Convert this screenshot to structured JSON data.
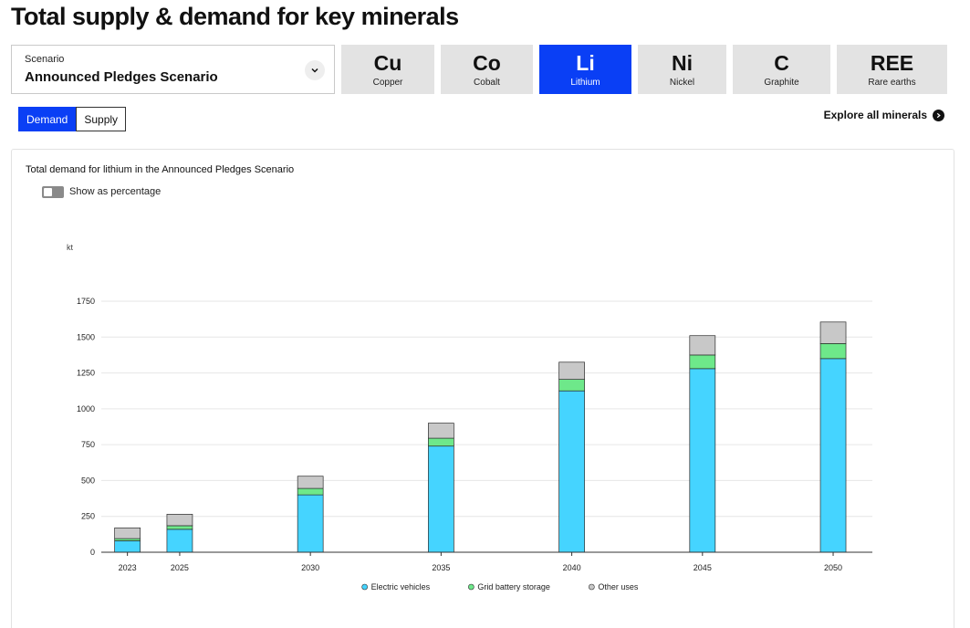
{
  "page": {
    "title": "Total supply & demand for key minerals"
  },
  "scenario": {
    "label": "Scenario",
    "value": "Announced Pledges Scenario",
    "icon": "chevron-down-icon"
  },
  "minerals": [
    {
      "symbol": "Cu",
      "name": "Copper",
      "active": false
    },
    {
      "symbol": "Co",
      "name": "Cobalt",
      "active": false
    },
    {
      "symbol": "Li",
      "name": "Lithium",
      "active": true
    },
    {
      "symbol": "Ni",
      "name": "Nickel",
      "active": false
    },
    {
      "symbol": "C",
      "name": "Graphite",
      "active": false
    },
    {
      "symbol": "REE",
      "name": "Rare earths",
      "active": false
    }
  ],
  "view_toggle": {
    "demand": "Demand",
    "supply": "Supply",
    "selected": "Demand"
  },
  "explore": {
    "label": "Explore all minerals",
    "icon": "arrow-right-icon"
  },
  "panel": {
    "chart_title": "Total demand for lithium in the Announced Pledges Scenario",
    "percent_toggle_label": "Show as percentage",
    "percent_toggle_on": false
  },
  "colors": {
    "accent": "#0a3ff5",
    "electric_vehicles": "#45d4ff",
    "grid_battery_storage": "#6ee88a",
    "other_uses": "#c8c8c8"
  },
  "chart_data": {
    "type": "bar",
    "stacked": true,
    "title": "Total demand for lithium in the Announced Pledges Scenario",
    "ylabel": "kt",
    "xlabel": "",
    "x": [
      2023,
      2025,
      2030,
      2035,
      2040,
      2045,
      2050
    ],
    "xlim": [
      2022,
      2051.5
    ],
    "ylim": [
      0,
      1750
    ],
    "yticks": [
      0,
      250,
      500,
      750,
      1000,
      1250,
      1500,
      1750
    ],
    "grid": true,
    "legend_position": "bottom-center",
    "series": [
      {
        "name": "Electric vehicles",
        "color": "#45d4ff",
        "values": [
          80,
          160,
          400,
          740,
          1125,
          1280,
          1350
        ]
      },
      {
        "name": "Grid battery storage",
        "color": "#6ee88a",
        "values": [
          15,
          25,
          45,
          55,
          80,
          95,
          105
        ]
      },
      {
        "name": "Other uses",
        "color": "#c8c8c8",
        "values": [
          75,
          80,
          85,
          105,
          120,
          135,
          150
        ]
      }
    ]
  }
}
